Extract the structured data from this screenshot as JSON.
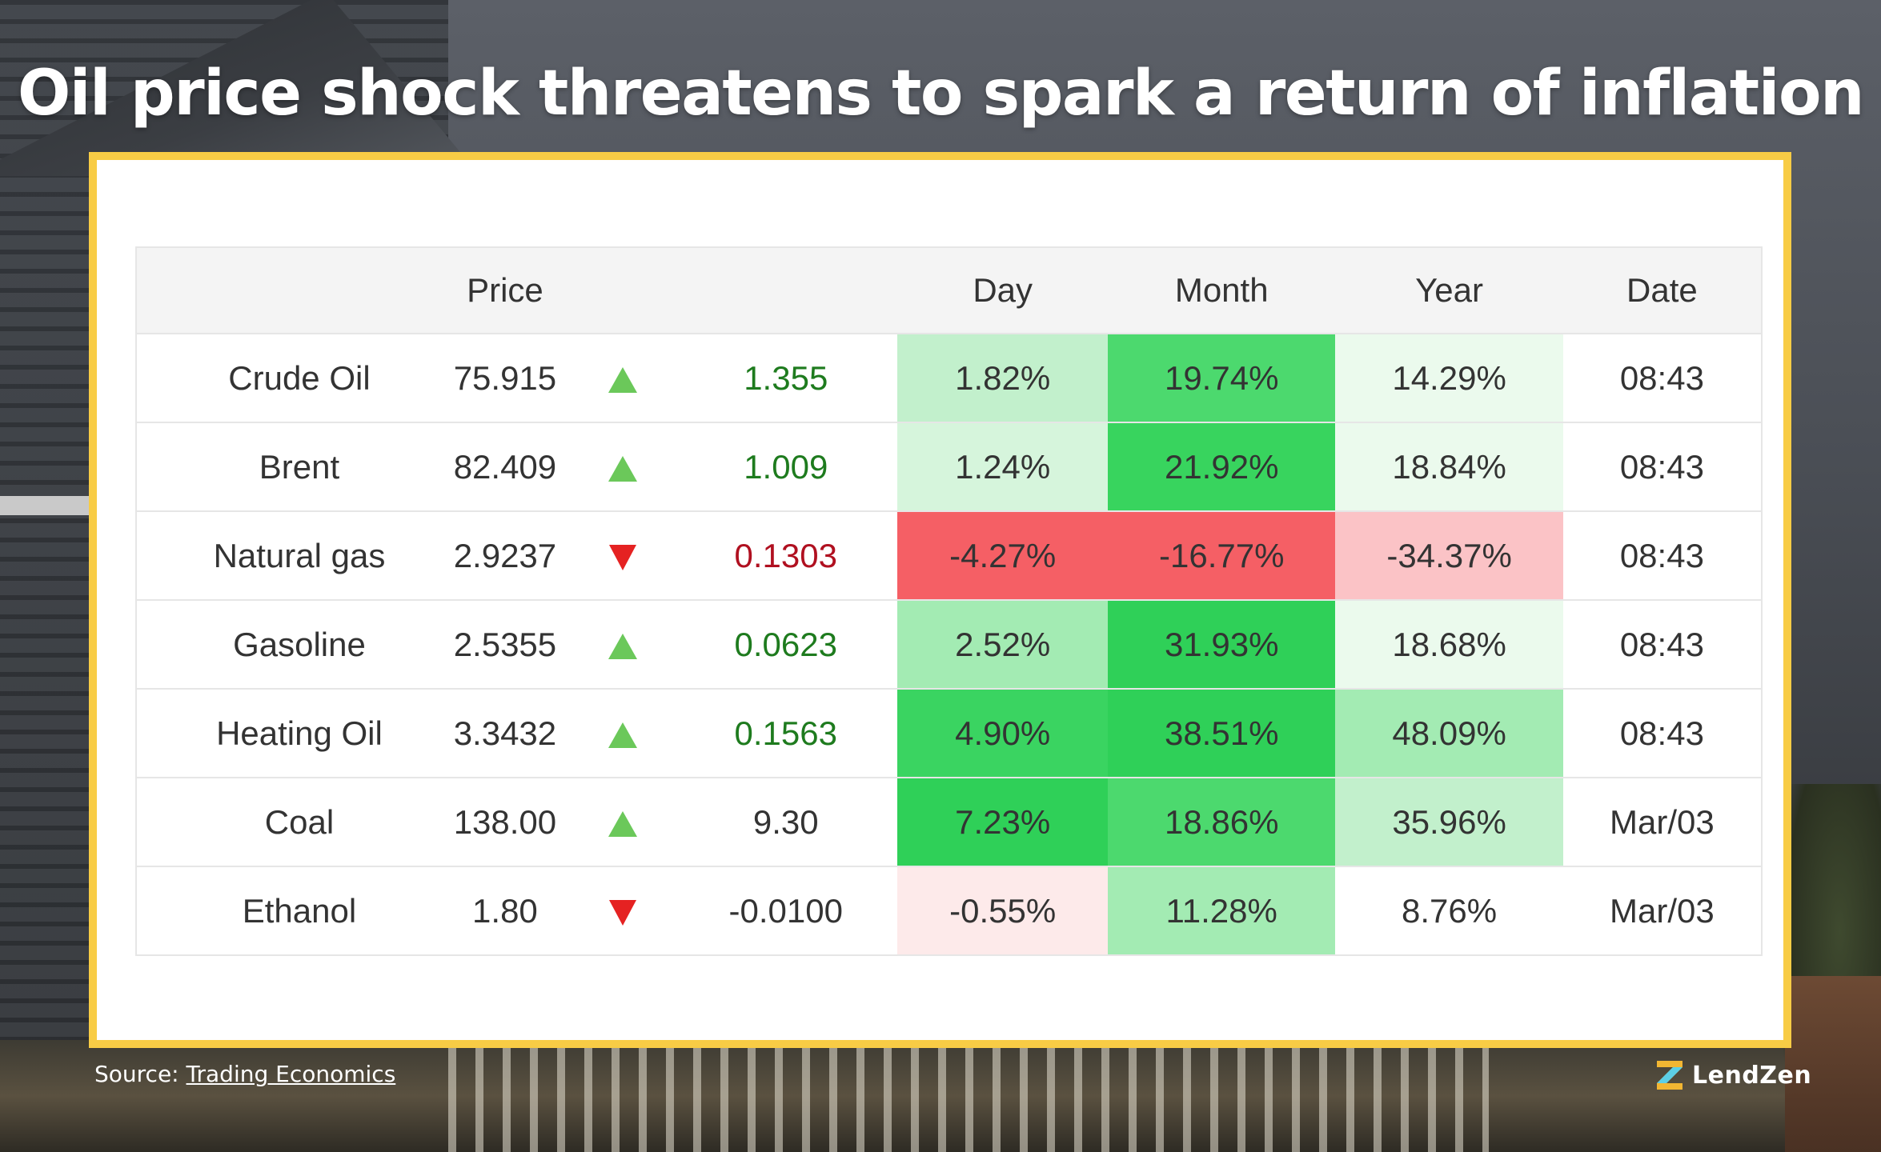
{
  "title": "Oil price shock threatens to spark a return of inflation",
  "table": {
    "headers": [
      "",
      "Price",
      "",
      "",
      "Day",
      "Month",
      "Year",
      "Date"
    ],
    "rows": [
      {
        "name": "Crude Oil",
        "price": "75.915",
        "direction": "up",
        "change": "1.355",
        "day": "1.82%",
        "month": "19.74%",
        "year": "14.29%",
        "date": "08:43",
        "day_bg": "#c2f0cc",
        "month_bg": "#4cd96e",
        "year_bg": "#ebfaed"
      },
      {
        "name": "Brent",
        "price": "82.409",
        "direction": "up",
        "change": "1.009",
        "day": "1.24%",
        "month": "21.92%",
        "year": "18.84%",
        "date": "08:43",
        "day_bg": "#d6f5dc",
        "month_bg": "#38d45e",
        "year_bg": "#ebfaed"
      },
      {
        "name": "Natural gas",
        "price": "2.9237",
        "direction": "down",
        "change": "0.1303",
        "day": "-4.27%",
        "month": "-16.77%",
        "year": "-34.37%",
        "date": "08:43",
        "day_bg": "#f55f65",
        "month_bg": "#f55f65",
        "year_bg": "#fbc3c6"
      },
      {
        "name": "Gasoline",
        "price": "2.5355",
        "direction": "up",
        "change": "0.0623",
        "day": "2.52%",
        "month": "31.93%",
        "year": "18.68%",
        "date": "08:43",
        "day_bg": "#a3ebb3",
        "month_bg": "#2fd058",
        "year_bg": "#ebfaed"
      },
      {
        "name": "Heating Oil",
        "price": "3.3432",
        "direction": "up",
        "change": "0.1563",
        "day": "4.90%",
        "month": "38.51%",
        "year": "48.09%",
        "date": "08:43",
        "day_bg": "#3ad461",
        "month_bg": "#2fd058",
        "year_bg": "#a3ebb3"
      },
      {
        "name": "Coal",
        "price": "138.00",
        "direction": "up",
        "change": "9.30",
        "day": "7.23%",
        "month": "18.86%",
        "year": "35.96%",
        "date": "Mar/03",
        "day_bg": "#2fd058",
        "month_bg": "#4cd96e",
        "year_bg": "#c2f0cc"
      },
      {
        "name": "Ethanol",
        "price": "1.80",
        "direction": "down",
        "change": "-0.0100",
        "day": "-0.55%",
        "month": "11.28%",
        "year": "8.76%",
        "date": "Mar/03",
        "day_bg": "#fdeaea",
        "month_bg": "#a3ebb3",
        "year_bg": "#ffffff"
      }
    ]
  },
  "colors": {
    "frame": "#f8cc45",
    "positive_text": "#1e7b1e",
    "negative_text": "#b01020",
    "up_arrow": "#6bc85a",
    "down_arrow": "#e52222"
  },
  "footer": {
    "source_prefix": "Source:",
    "source_link": "Trading Economics",
    "brand": "LendZen",
    "brand_icon": "lendzen-logo-icon"
  }
}
